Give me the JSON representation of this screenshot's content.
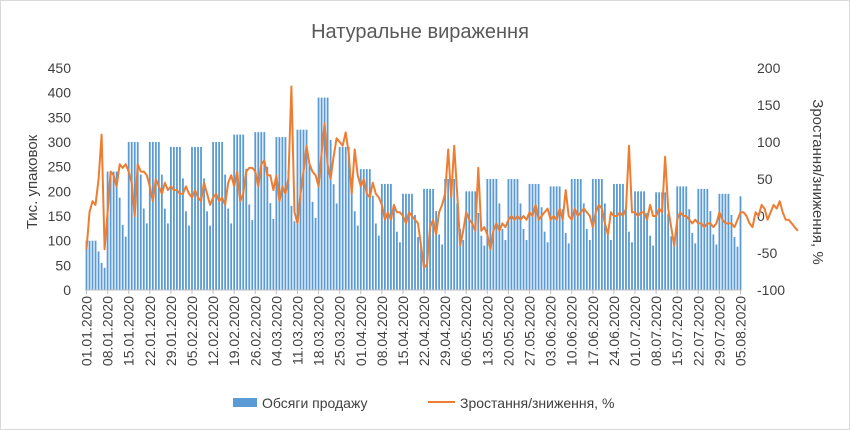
{
  "chart_data": {
    "type": "bar+line",
    "title": "Натуральне вираження",
    "ylabel": "Тис. упаковок",
    "y2label": "Зростання/зниження, %",
    "ylim": [
      0,
      450
    ],
    "y2lim": [
      -100,
      200
    ],
    "yticks": [
      0,
      50,
      100,
      150,
      200,
      250,
      300,
      350,
      400,
      450
    ],
    "y2ticks": [
      -100,
      -50,
      0,
      50,
      100,
      150,
      200
    ],
    "x_start": "01.01.2020",
    "x_end": "05.08.2020",
    "xtick_labels": [
      "01.01.2020",
      "08.01.2020",
      "15.01.2020",
      "22.01.2020",
      "29.01.2020",
      "05.02.2020",
      "12.02.2020",
      "19.02.2020",
      "26.02.2020",
      "04.03.2020",
      "11.03.2020",
      "18.03.2020",
      "25.03.2020",
      "01.04.2020",
      "08.04.2020",
      "15.04.2020",
      "22.04.2020",
      "29.04.2020",
      "06.05.2020",
      "13.05.2020",
      "20.05.2020",
      "27.05.2020",
      "03.06.2020",
      "10.06.2020",
      "17.06.2020",
      "24.06.2020",
      "01.07.2020",
      "08.07.2020",
      "15.07.2020",
      "22.07.2020",
      "29.07.2020",
      "05.08.2020"
    ],
    "series": [
      {
        "name": "Обсяги продажу",
        "type": "bar",
        "axis": "left",
        "color": "#5b9bd5",
        "weekly_pattern": [
          1,
          1,
          1,
          1,
          0.78,
          0.55,
          0.45
        ],
        "weekly_levels": [
          100,
          240,
          300,
          300,
          290,
          290,
          300,
          315,
          320,
          310,
          325,
          390,
          290,
          245,
          215,
          195,
          205,
          225,
          200,
          225,
          225,
          215,
          210,
          225,
          225,
          215,
          200,
          198,
          210,
          205,
          195,
          190
        ]
      },
      {
        "name": "Зростання/зниження, %",
        "type": "line",
        "axis": "right",
        "color": "#ed7d31",
        "points": [
          [
            0,
            -45
          ],
          [
            1,
            5
          ],
          [
            2,
            20
          ],
          [
            3,
            15
          ],
          [
            4,
            50
          ],
          [
            5,
            110
          ],
          [
            6,
            -45
          ],
          [
            7,
            5
          ],
          [
            8,
            60
          ],
          [
            9,
            55
          ],
          [
            10,
            40
          ],
          [
            11,
            70
          ],
          [
            12,
            65
          ],
          [
            13,
            70
          ],
          [
            14,
            60
          ],
          [
            15,
            45
          ],
          [
            16,
            0
          ],
          [
            17,
            70
          ],
          [
            18,
            60
          ],
          [
            19,
            60
          ],
          [
            20,
            55
          ],
          [
            21,
            40
          ],
          [
            22,
            20
          ],
          [
            23,
            50
          ],
          [
            24,
            40
          ],
          [
            25,
            30
          ],
          [
            26,
            45
          ],
          [
            27,
            35
          ],
          [
            28,
            40
          ],
          [
            29,
            35
          ],
          [
            30,
            35
          ],
          [
            31,
            30
          ],
          [
            32,
            30
          ],
          [
            33,
            40
          ],
          [
            34,
            30
          ],
          [
            35,
            25
          ],
          [
            36,
            35
          ],
          [
            37,
            25
          ],
          [
            38,
            20
          ],
          [
            39,
            45
          ],
          [
            40,
            30
          ],
          [
            41,
            15
          ],
          [
            42,
            25
          ],
          [
            43,
            30
          ],
          [
            44,
            20
          ],
          [
            45,
            25
          ],
          [
            46,
            15
          ],
          [
            47,
            45
          ],
          [
            48,
            55
          ],
          [
            49,
            40
          ],
          [
            50,
            60
          ],
          [
            51,
            20
          ],
          [
            52,
            30
          ],
          [
            53,
            60
          ],
          [
            54,
            65
          ],
          [
            55,
            65
          ],
          [
            56,
            60
          ],
          [
            57,
            40
          ],
          [
            58,
            70
          ],
          [
            59,
            75
          ],
          [
            60,
            55
          ],
          [
            61,
            55
          ],
          [
            62,
            35
          ],
          [
            63,
            55
          ],
          [
            64,
            20
          ],
          [
            65,
            40
          ],
          [
            66,
            30
          ],
          [
            67,
            50
          ],
          [
            68,
            175
          ],
          [
            69,
            5
          ],
          [
            70,
            -10
          ],
          [
            71,
            30
          ],
          [
            72,
            60
          ],
          [
            73,
            95
          ],
          [
            74,
            70
          ],
          [
            75,
            60
          ],
          [
            76,
            55
          ],
          [
            77,
            40
          ],
          [
            78,
            85
          ],
          [
            79,
            125
          ],
          [
            80,
            70
          ],
          [
            81,
            50
          ],
          [
            82,
            80
          ],
          [
            83,
            105
          ],
          [
            84,
            100
          ],
          [
            85,
            95
          ],
          [
            86,
            113
          ],
          [
            87,
            85
          ],
          [
            88,
            30
          ],
          [
            89,
            90
          ],
          [
            90,
            55
          ],
          [
            91,
            40
          ],
          [
            92,
            50
          ],
          [
            93,
            30
          ],
          [
            94,
            25
          ],
          [
            95,
            45
          ],
          [
            96,
            30
          ],
          [
            97,
            25
          ],
          [
            98,
            15
          ],
          [
            99,
            -5
          ],
          [
            100,
            5
          ],
          [
            101,
            -5
          ],
          [
            102,
            15
          ],
          [
            103,
            5
          ],
          [
            104,
            5
          ],
          [
            105,
            0
          ],
          [
            106,
            -10
          ],
          [
            107,
            5
          ],
          [
            108,
            0
          ],
          [
            109,
            -5
          ],
          [
            110,
            -10
          ],
          [
            111,
            -40
          ],
          [
            112,
            -70
          ],
          [
            113,
            -65
          ],
          [
            114,
            -15
          ],
          [
            115,
            -5
          ],
          [
            116,
            -25
          ],
          [
            117,
            5
          ],
          [
            118,
            15
          ],
          [
            119,
            30
          ],
          [
            120,
            90
          ],
          [
            121,
            25
          ],
          [
            122,
            95
          ],
          [
            123,
            30
          ],
          [
            124,
            -40
          ],
          [
            125,
            -20
          ],
          [
            126,
            5
          ],
          [
            127,
            -5
          ],
          [
            128,
            -10
          ],
          [
            129,
            -20
          ],
          [
            130,
            65
          ],
          [
            131,
            -20
          ],
          [
            132,
            -15
          ],
          [
            133,
            -25
          ],
          [
            134,
            -45
          ],
          [
            135,
            -20
          ],
          [
            136,
            -10
          ],
          [
            137,
            -20
          ],
          [
            138,
            -10
          ],
          [
            139,
            -15
          ],
          [
            140,
            -5
          ],
          [
            141,
            0
          ],
          [
            142,
            -5
          ],
          [
            143,
            0
          ],
          [
            144,
            -5
          ],
          [
            145,
            0
          ],
          [
            146,
            -5
          ],
          [
            147,
            5
          ],
          [
            148,
            0
          ],
          [
            149,
            15
          ],
          [
            150,
            -5
          ],
          [
            151,
            0
          ],
          [
            152,
            5
          ],
          [
            153,
            10
          ],
          [
            154,
            -5
          ],
          [
            155,
            0
          ],
          [
            156,
            -5
          ],
          [
            157,
            10
          ],
          [
            158,
            -5
          ],
          [
            159,
            35
          ],
          [
            160,
            0
          ],
          [
            161,
            -5
          ],
          [
            162,
            10
          ],
          [
            163,
            0
          ],
          [
            164,
            5
          ],
          [
            165,
            10
          ],
          [
            166,
            5
          ],
          [
            167,
            0
          ],
          [
            168,
            -15
          ],
          [
            169,
            5
          ],
          [
            170,
            15
          ],
          [
            171,
            10
          ],
          [
            172,
            -10
          ],
          [
            173,
            -25
          ],
          [
            174,
            5
          ],
          [
            175,
            0
          ],
          [
            176,
            0
          ],
          [
            177,
            5
          ],
          [
            178,
            0
          ],
          [
            179,
            10
          ],
          [
            180,
            95
          ],
          [
            181,
            5
          ],
          [
            182,
            5
          ],
          [
            183,
            0
          ],
          [
            184,
            5
          ],
          [
            185,
            5
          ],
          [
            186,
            -5
          ],
          [
            187,
            15
          ],
          [
            188,
            0
          ],
          [
            189,
            0
          ],
          [
            190,
            10
          ],
          [
            191,
            5
          ],
          [
            192,
            80
          ],
          [
            193,
            10
          ],
          [
            194,
            -15
          ],
          [
            195,
            -40
          ],
          [
            196,
            -5
          ],
          [
            197,
            5
          ],
          [
            198,
            0
          ],
          [
            199,
            0
          ],
          [
            200,
            -5
          ],
          [
            201,
            -10
          ],
          [
            202,
            -5
          ],
          [
            203,
            -10
          ],
          [
            204,
            -10
          ],
          [
            205,
            -15
          ],
          [
            206,
            -10
          ],
          [
            207,
            -10
          ],
          [
            208,
            -15
          ],
          [
            209,
            -10
          ],
          [
            210,
            5
          ],
          [
            211,
            -5
          ],
          [
            212,
            -10
          ],
          [
            213,
            -10
          ],
          [
            214,
            -10
          ],
          [
            215,
            -15
          ],
          [
            216,
            -5
          ],
          [
            217,
            5
          ],
          [
            218,
            5
          ],
          [
            219,
            0
          ],
          [
            220,
            -10
          ],
          [
            221,
            -15
          ],
          [
            222,
            5
          ],
          [
            223,
            0
          ],
          [
            224,
            15
          ],
          [
            225,
            10
          ],
          [
            226,
            -5
          ],
          [
            227,
            5
          ],
          [
            228,
            15
          ],
          [
            229,
            10
          ],
          [
            230,
            20
          ],
          [
            231,
            5
          ],
          [
            232,
            -5
          ],
          [
            233,
            -5
          ],
          [
            234,
            -10
          ],
          [
            235,
            -15
          ],
          [
            236,
            -20
          ]
        ]
      }
    ],
    "legend": "bottom",
    "grid": false
  }
}
